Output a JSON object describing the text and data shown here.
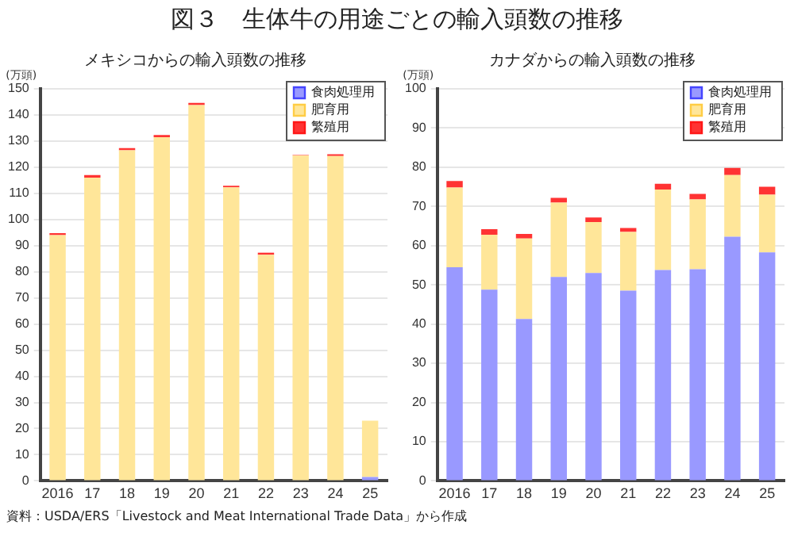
{
  "chart_data": [
    {
      "type": "bar",
      "title": "図３　生体牛の用途ごとの輸入頭数の推移",
      "subtitle": "メキシコからの輸入頭数の推移",
      "ylabel": "(万頭)",
      "stacked": true,
      "grid": "y",
      "legend": "top right",
      "categories": [
        "2016",
        "17",
        "18",
        "19",
        "20",
        "21",
        "22",
        "23",
        "24",
        "25"
      ],
      "ylim": [
        0,
        150
      ],
      "yticks": [
        0,
        10,
        20,
        30,
        40,
        50,
        60,
        70,
        80,
        90,
        100,
        110,
        120,
        130,
        140,
        150
      ],
      "series": [
        {
          "name": "食肉処理用",
          "color": "#9999ff",
          "values": [
            0,
            0,
            0,
            0,
            0,
            0,
            0,
            0,
            0,
            1.5
          ]
        },
        {
          "name": "肥育用",
          "color": "#ffe699",
          "values": [
            94,
            116,
            126.5,
            131.5,
            143.8,
            112.3,
            86.5,
            124.5,
            124.3,
            21.5
          ]
        },
        {
          "name": "繁殖用",
          "color": "#ff3333",
          "values": [
            0.8,
            1,
            0.8,
            0.8,
            0.8,
            0.6,
            0.8,
            0.2,
            0.7,
            0
          ]
        }
      ],
      "annotations": [
        "資料：USDA/ERS「Livestock and Meat International Trade Data」から作成"
      ]
    },
    {
      "type": "bar",
      "subtitle": "カナダからの輸入頭数の推移",
      "ylabel": "(万頭)",
      "stacked": true,
      "grid": "y",
      "legend": "top right",
      "categories": [
        "2016",
        "17",
        "18",
        "19",
        "20",
        "21",
        "22",
        "23",
        "24",
        "25"
      ],
      "ylim": [
        0,
        100
      ],
      "yticks": [
        0,
        10,
        20,
        30,
        40,
        50,
        60,
        70,
        80,
        90,
        100
      ],
      "series": [
        {
          "name": "食肉処理用",
          "color": "#9999ff",
          "values": [
            54.5,
            48.8,
            41.3,
            52,
            53,
            48.5,
            53.8,
            54,
            62.3,
            58.3
          ]
        },
        {
          "name": "肥育用",
          "color": "#ffe699",
          "values": [
            20.3,
            14,
            20.5,
            19,
            13,
            15,
            20.5,
            17.8,
            15.7,
            14.7
          ]
        },
        {
          "name": "繁殖用",
          "color": "#ff3333",
          "values": [
            1.7,
            1.4,
            1.2,
            1.2,
            1.2,
            1,
            1.5,
            1.4,
            1.8,
            2
          ]
        }
      ]
    }
  ]
}
